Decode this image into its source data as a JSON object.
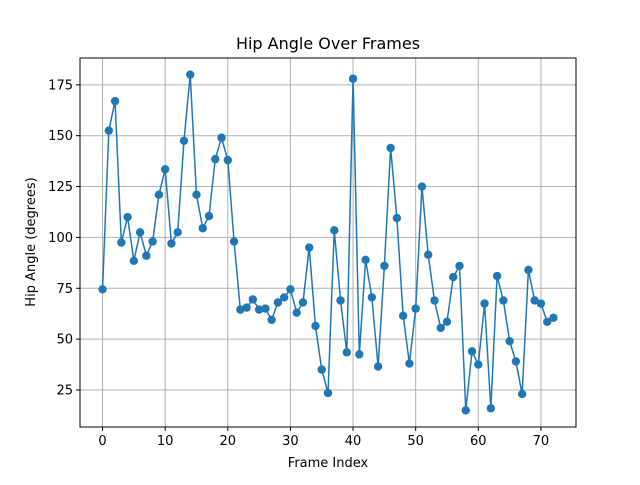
{
  "chart_data": {
    "type": "line",
    "title": "Hip Angle Over Frames",
    "xlabel": "Frame Index",
    "ylabel": "Hip Angle (degrees)",
    "xlim": [
      -3.6,
      75.6
    ],
    "ylim": [
      6.8,
      188.2
    ],
    "xticks": [
      0,
      10,
      20,
      30,
      40,
      50,
      60,
      70
    ],
    "yticks": [
      25,
      50,
      75,
      100,
      125,
      150,
      175
    ],
    "grid": true,
    "marker": "circle",
    "color": "#1f77b4",
    "series": [
      {
        "x": [
          0,
          1,
          2,
          3,
          4,
          5,
          6,
          7,
          8,
          9,
          10,
          11,
          12,
          13,
          14,
          15,
          16,
          17,
          18,
          19,
          20,
          21,
          22,
          23,
          24,
          25,
          26,
          27,
          28,
          29,
          30,
          31,
          32,
          33,
          34,
          35,
          36,
          37,
          38,
          39,
          40,
          41,
          42,
          43,
          44,
          45,
          46,
          47,
          48,
          49,
          50,
          51,
          52,
          53,
          54,
          55,
          56,
          57,
          58,
          59,
          60,
          61,
          62,
          63,
          64,
          65,
          66,
          67,
          68,
          69,
          70,
          71,
          72
        ],
        "values": [
          74.5,
          152.5,
          167.0,
          97.5,
          110.0,
          88.5,
          102.5,
          91.0,
          98.0,
          121.0,
          133.5,
          97.0,
          102.5,
          147.5,
          180.0,
          121.0,
          104.5,
          110.5,
          138.5,
          149.0,
          138.0,
          98.0,
          64.5,
          65.5,
          69.5,
          64.5,
          65.0,
          59.5,
          68.0,
          70.5,
          74.5,
          63.0,
          68.0,
          95.0,
          56.5,
          35.0,
          23.5,
          103.5,
          69.0,
          43.5,
          178.0,
          42.5,
          89.0,
          70.5,
          36.5,
          86.0,
          144.0,
          109.5,
          61.5,
          38.0,
          65.0,
          125.0,
          91.5,
          69.0,
          55.5,
          58.5,
          80.5,
          86.0,
          15.0,
          44.0,
          37.5,
          67.5,
          16.0,
          81.0,
          69.0,
          49.0,
          39.0,
          23.0,
          84.0,
          69.0,
          67.5,
          58.5,
          60.5
        ]
      }
    ]
  }
}
